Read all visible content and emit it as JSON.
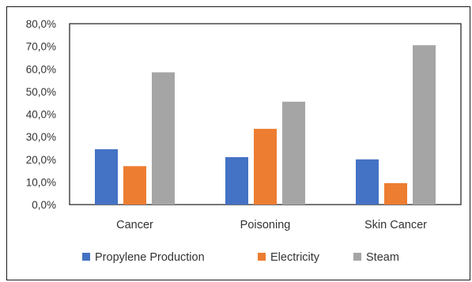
{
  "chart_data": {
    "type": "bar",
    "title": "",
    "xlabel": "",
    "ylabel": "",
    "categories": [
      "Cancer",
      "Poisoning",
      "Skin Cancer"
    ],
    "series": [
      {
        "name": "Propylene Production",
        "color": "#4472C4",
        "values": [
          24.5,
          21.0,
          20.0
        ]
      },
      {
        "name": "Electricity",
        "color": "#ED7D31",
        "values": [
          17.0,
          33.5,
          9.5
        ]
      },
      {
        "name": "Steam",
        "color": "#A5A5A5",
        "values": [
          58.5,
          45.5,
          70.5
        ]
      }
    ],
    "ylim": [
      0,
      80
    ],
    "yticks": [
      "0,0%",
      "10,0%",
      "20,0%",
      "30,0%",
      "40,0%",
      "50,0%",
      "60,0%",
      "70,0%",
      "80,0%"
    ],
    "grid": false,
    "legend_position": "bottom"
  }
}
